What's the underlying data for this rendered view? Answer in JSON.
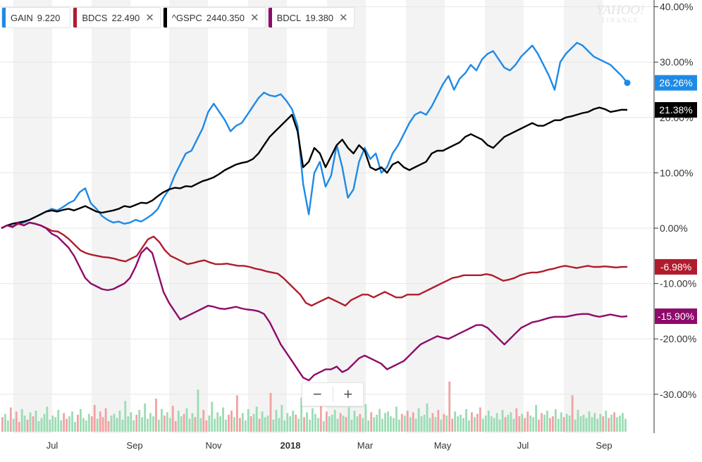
{
  "watermark": {
    "line1": "YAHOO!",
    "line2": "FINANCE"
  },
  "legend": [
    {
      "symbol": "GAIN",
      "value": "9.220",
      "color": "#1e8ae6",
      "removable": false
    },
    {
      "symbol": "BDCS",
      "value": "22.490",
      "color": "#b01c2e",
      "removable": true
    },
    {
      "symbol": "^GSPC",
      "value": "2440.350",
      "color": "#000000",
      "removable": true
    },
    {
      "symbol": "BDCL",
      "value": "19.380",
      "color": "#8e0a6b",
      "removable": true
    }
  ],
  "remove_glyph": "✕",
  "zoom": {
    "out_label": "−",
    "in_label": "+"
  },
  "chart_data": {
    "type": "line",
    "x_ticks": [
      "Jul",
      "Sep",
      "Nov",
      "2018",
      "Mar",
      "May",
      "Jul",
      "Sep"
    ],
    "y_ticks": [
      "40.00%",
      "30.00%",
      "20.00%",
      "10.00%",
      "0.00%",
      "-10.00%",
      "-20.00%",
      "-30.00%"
    ],
    "ylim": [
      -37,
      41
    ],
    "y_unit": "%",
    "series": [
      {
        "name": "GAIN",
        "color": "#1e8ae6",
        "end_label": "26.26%",
        "end_dot": true,
        "values": [
          0,
          0.5,
          0.2,
          0.8,
          1.0,
          1.5,
          2.0,
          2.5,
          3.0,
          3.5,
          3.2,
          3.8,
          4.5,
          5.0,
          6.5,
          7.2,
          4.5,
          3.5,
          2.2,
          1.5,
          1.0,
          1.2,
          0.8,
          1.0,
          1.5,
          1.2,
          1.8,
          2.5,
          3.5,
          5.5,
          7.0,
          9.5,
          11.5,
          13.5,
          14.0,
          16.0,
          18.0,
          21.0,
          22.5,
          21.0,
          19.5,
          17.5,
          18.5,
          19.0,
          20.5,
          22.0,
          23.5,
          24.5,
          24.0,
          23.8,
          24.2,
          23.0,
          21.5,
          18.5,
          8.0,
          2.5,
          10.0,
          12.0,
          7.5,
          9.5,
          15.0,
          11.0,
          5.5,
          7.0,
          12.0,
          14.5,
          12.5,
          13.5,
          10.0,
          11.0,
          13.5,
          15.0,
          17.0,
          19.0,
          20.5,
          21.0,
          20.5,
          22.0,
          24.0,
          26.0,
          27.5,
          25.0,
          27.0,
          28.0,
          29.5,
          28.5,
          30.5,
          31.5,
          32.0,
          30.5,
          29.0,
          28.5,
          29.5,
          31.0,
          32.0,
          33.0,
          31.5,
          29.5,
          27.5,
          25.0,
          30.0,
          31.5,
          32.5,
          33.5,
          33.0,
          32.0,
          31.0,
          30.5,
          30.0,
          29.5,
          28.5,
          27.5,
          26.26
        ]
      },
      {
        "name": "^GSPC",
        "color": "#000000",
        "end_label": "21.38%",
        "end_dot": false,
        "values": [
          0,
          0.5,
          0.8,
          1.0,
          1.2,
          1.5,
          2.0,
          2.5,
          3.0,
          3.2,
          3.0,
          3.3,
          3.5,
          3.2,
          3.6,
          4.0,
          3.5,
          3.0,
          2.8,
          3.0,
          3.2,
          3.5,
          4.0,
          3.8,
          4.2,
          4.6,
          4.5,
          5.0,
          5.8,
          6.5,
          7.0,
          7.3,
          7.2,
          7.6,
          7.5,
          8.0,
          8.5,
          8.8,
          9.2,
          9.8,
          10.5,
          11.0,
          11.5,
          11.8,
          12.0,
          12.5,
          13.5,
          15.0,
          16.5,
          17.5,
          18.5,
          19.5,
          20.5,
          17.5,
          11.0,
          12.0,
          14.5,
          13.5,
          11.0,
          13.0,
          15.0,
          16.0,
          14.5,
          13.5,
          15.0,
          14.0,
          11.0,
          10.5,
          11.0,
          10.0,
          11.5,
          12.0,
          11.0,
          10.5,
          11.0,
          11.5,
          12.0,
          13.5,
          14.0,
          14.0,
          14.5,
          15.0,
          15.5,
          16.5,
          17.0,
          16.5,
          16.0,
          15.0,
          14.5,
          15.5,
          16.5,
          17.0,
          17.5,
          18.0,
          18.5,
          19.0,
          18.5,
          18.5,
          19.0,
          19.5,
          19.5,
          20.0,
          20.2,
          20.5,
          20.8,
          21.0,
          21.5,
          21.8,
          21.5,
          21.0,
          21.2,
          21.4,
          21.38
        ]
      },
      {
        "name": "BDCS",
        "color": "#b01c2e",
        "end_label": "-6.98%",
        "end_dot": false,
        "values": [
          0,
          0.5,
          0.3,
          0.8,
          0.5,
          1.0,
          0.8,
          0.5,
          0,
          -0.5,
          -0.6,
          -1.2,
          -2.0,
          -3.0,
          -4.0,
          -4.5,
          -4.8,
          -5.0,
          -5.2,
          -5.3,
          -5.5,
          -5.8,
          -6.0,
          -5.5,
          -5.0,
          -3.5,
          -2.0,
          -1.5,
          -2.5,
          -4.0,
          -5.0,
          -5.5,
          -6.0,
          -6.5,
          -6.3,
          -6.0,
          -5.8,
          -6.2,
          -6.5,
          -6.5,
          -6.4,
          -6.6,
          -6.8,
          -6.8,
          -7.0,
          -7.3,
          -7.5,
          -7.8,
          -8.0,
          -8.2,
          -9.0,
          -10.0,
          -11.0,
          -12.0,
          -13.5,
          -14.0,
          -13.5,
          -13.0,
          -12.5,
          -13.0,
          -13.5,
          -14.0,
          -13.0,
          -12.5,
          -12.0,
          -12.0,
          -12.5,
          -12.0,
          -11.5,
          -12.0,
          -12.5,
          -12.5,
          -12.0,
          -12.0,
          -12.0,
          -11.5,
          -11.0,
          -10.5,
          -10.0,
          -9.5,
          -9.0,
          -8.8,
          -8.5,
          -8.5,
          -8.5,
          -8.5,
          -8.3,
          -8.5,
          -9.0,
          -9.5,
          -9.3,
          -9.0,
          -8.5,
          -8.2,
          -8.0,
          -8.0,
          -7.8,
          -7.5,
          -7.3,
          -7.0,
          -6.8,
          -7.0,
          -7.2,
          -7.0,
          -6.8,
          -7.0,
          -7.0,
          -6.9,
          -7.0,
          -7.1,
          -7.0,
          -6.98
        ]
      },
      {
        "name": "BDCL",
        "color": "#8e0a6b",
        "end_label": "-15.90%",
        "end_dot": false,
        "values": [
          0,
          0.5,
          0.2,
          1.0,
          0.5,
          1.0,
          0.8,
          0.5,
          0,
          -1.0,
          -1.5,
          -2.5,
          -3.5,
          -5.0,
          -7.0,
          -9.0,
          -10.0,
          -10.5,
          -11.0,
          -11.2,
          -11.0,
          -10.5,
          -10.0,
          -9.0,
          -7.0,
          -4.5,
          -3.5,
          -4.5,
          -8.0,
          -11.5,
          -13.5,
          -15.0,
          -16.5,
          -16.0,
          -15.5,
          -15.0,
          -14.5,
          -14.0,
          -14.2,
          -14.5,
          -14.6,
          -14.4,
          -14.2,
          -14.5,
          -14.7,
          -14.8,
          -15.0,
          -15.5,
          -17.0,
          -19.0,
          -21.0,
          -22.5,
          -24.0,
          -25.5,
          -27.0,
          -27.5,
          -26.5,
          -26.0,
          -25.5,
          -25.5,
          -25.0,
          -26.0,
          -25.5,
          -24.5,
          -23.5,
          -23.0,
          -23.5,
          -24.0,
          -24.5,
          -25.5,
          -25.0,
          -24.5,
          -24.0,
          -23.0,
          -22.0,
          -21.0,
          -20.5,
          -20.0,
          -19.5,
          -19.8,
          -20.0,
          -19.5,
          -19.0,
          -18.5,
          -18.0,
          -17.5,
          -17.5,
          -18.0,
          -19.0,
          -20.0,
          -21.0,
          -20.0,
          -19.0,
          -18.0,
          -17.5,
          -17.0,
          -16.8,
          -16.5,
          -16.2,
          -16.0,
          -16.0,
          -16.0,
          -15.8,
          -15.6,
          -15.5,
          -15.5,
          -15.8,
          -16.0,
          -15.8,
          -15.6,
          -15.8,
          -16.0,
          -15.9
        ]
      }
    ],
    "volume": [
      18,
      22,
      14,
      30,
      16,
      25,
      12,
      28,
      20,
      15,
      24,
      19,
      26,
      13,
      17,
      22,
      31,
      15,
      20,
      18,
      27,
      14,
      23,
      16,
      19,
      25,
      12,
      21,
      28,
      17,
      14,
      22,
      19,
      33,
      16,
      25,
      18,
      29,
      13,
      20,
      22,
      17,
      26,
      15,
      38,
      19,
      24,
      14,
      21,
      27,
      18,
      35,
      16,
      23,
      19,
      41,
      15,
      28,
      20,
      24,
      17,
      32,
      13,
      26,
      19,
      22,
      29,
      16,
      23,
      18,
      52,
      17,
      27,
      14,
      20,
      37,
      16,
      24,
      19,
      30,
      15,
      21,
      26,
      18,
      45,
      17,
      23,
      14,
      28,
      19,
      22,
      31,
      16,
      25,
      18,
      20,
      48,
      15,
      27,
      17,
      33,
      14,
      23,
      19,
      26,
      21,
      16,
      42,
      18,
      24,
      15,
      29,
      22,
      17,
      36,
      13,
      25,
      19,
      21,
      27,
      16,
      23,
      20,
      18,
      30,
      15,
      26,
      19,
      22,
      17,
      34,
      14,
      24,
      18,
      21,
      28,
      16,
      23,
      25,
      19,
      17,
      31,
      15,
      22,
      20,
      26,
      18,
      24,
      16,
      29,
      19,
      21,
      35,
      17,
      23,
      18,
      27,
      15,
      22,
      20,
      62,
      16,
      25,
      19,
      21,
      17,
      28,
      14,
      24,
      18,
      22,
      30,
      16,
      20,
      26,
      19,
      17,
      23,
      15,
      27,
      18,
      21,
      24,
      16,
      29,
      19,
      22,
      17,
      25,
      20,
      18,
      33,
      15,
      23,
      21,
      26,
      17,
      19,
      28,
      16,
      24,
      18,
      22,
      20,
      45,
      15,
      27,
      19,
      21,
      17,
      25,
      18,
      23,
      16,
      22,
      19,
      26,
      17,
      21,
      24,
      18,
      20,
      23,
      16
    ]
  }
}
